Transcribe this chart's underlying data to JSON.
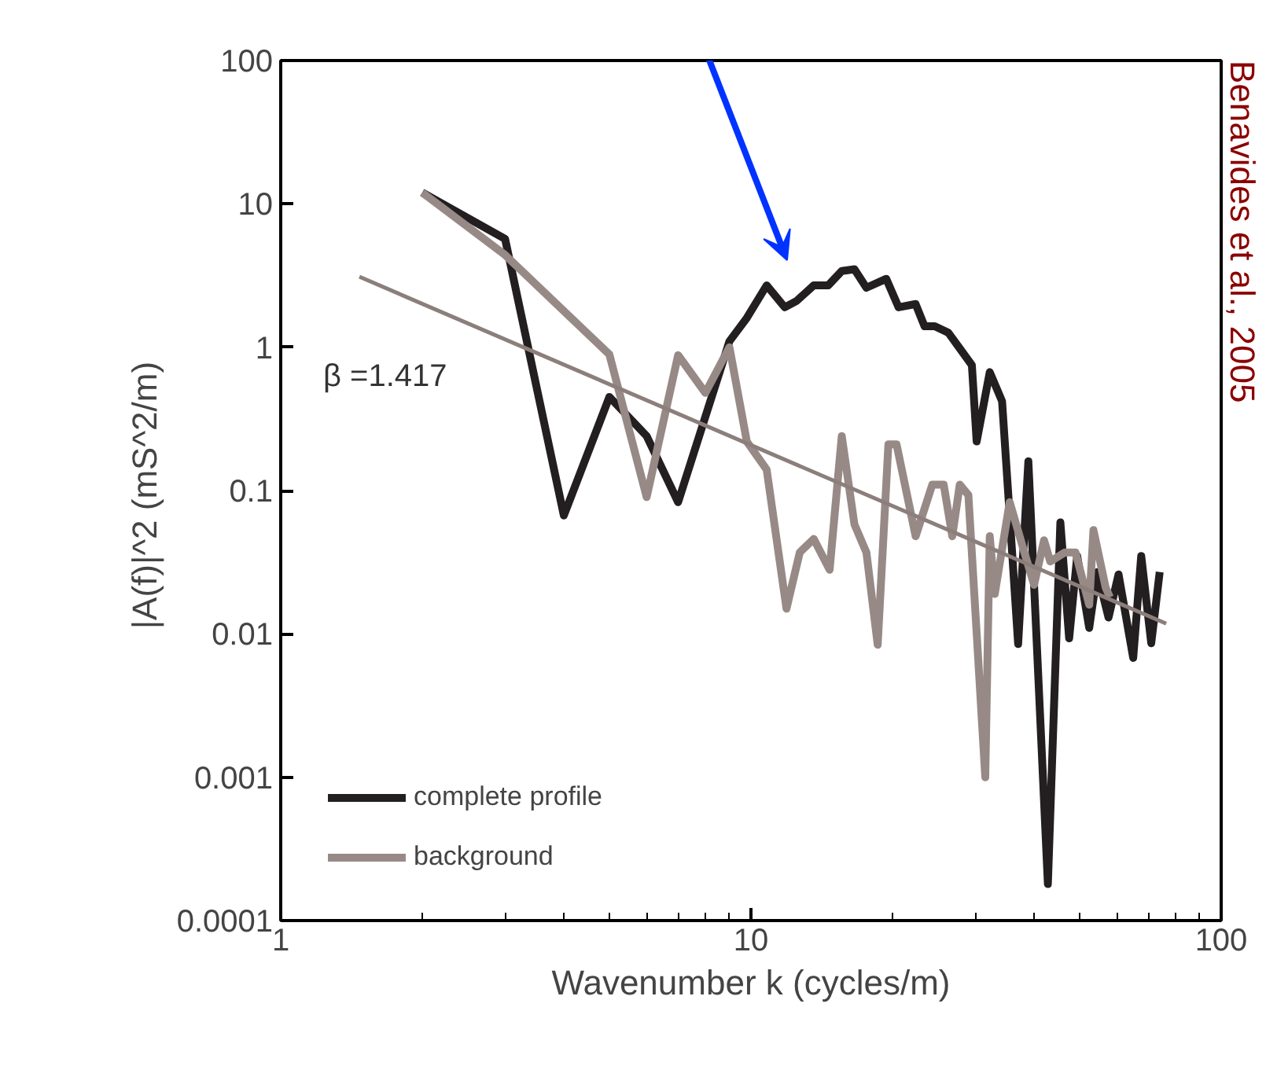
{
  "chart_data": {
    "type": "line",
    "xlabel": "Wavenumber k (cycles/m)",
    "ylabel": "|A(f)|^2  (mS^2/m)",
    "log": "xy",
    "xlim": [
      1,
      100
    ],
    "xticks": [
      1,
      10,
      100
    ],
    "ylim": [
      0.0001,
      100
    ],
    "yticks": [
      0.0001,
      0.001,
      0.01,
      0.1,
      1,
      10,
      100
    ],
    "grid": false,
    "legend": "bottom left",
    "marker": "none",
    "line_style": "solid",
    "series": [
      {
        "name": "complete profile",
        "color": "#231f20",
        "x": [
          2,
          3,
          4,
          5,
          6,
          7,
          9,
          9.8,
          10.8,
          11.8,
          12.5,
          13.6,
          14.6,
          15.6,
          16.6,
          17.6,
          19.4,
          20.6,
          22.4,
          23.4,
          24.6,
          26.3,
          28,
          29.5,
          30.2,
          32.2,
          34.2,
          35.5,
          37,
          38.9,
          42.8,
          45.5,
          47.5,
          49.4,
          52.4,
          54.5,
          57.6,
          60.5,
          65,
          67.6,
          71,
          74
        ],
        "values": [
          12,
          5.7,
          0.067,
          0.45,
          0.24,
          0.083,
          1.1,
          1.6,
          2.7,
          1.9,
          2.1,
          2.7,
          2.7,
          3.4,
          3.5,
          2.6,
          3.0,
          1.9,
          2.0,
          1.4,
          1.4,
          1.26,
          0.95,
          0.75,
          0.22,
          0.67,
          0.42,
          0.067,
          0.0085,
          0.16,
          0.00018,
          0.06,
          0.0093,
          0.035,
          0.011,
          0.027,
          0.013,
          0.026,
          0.0068,
          0.035,
          0.0086,
          0.027
        ]
      },
      {
        "name": "background",
        "color": "#978a86",
        "x": [
          2,
          3,
          5,
          6,
          7,
          8,
          9,
          9.8,
          10.8,
          11.9,
          12.7,
          13.6,
          14.7,
          15.6,
          16.6,
          17.6,
          18.6,
          19.6,
          20.4,
          22.4,
          24.3,
          25.7,
          26.8,
          27.8,
          29,
          31.5,
          32.2,
          33,
          35.5,
          37.8,
          40,
          42,
          43.3,
          46.5,
          49,
          52.4,
          53.5,
          56.8,
          58
        ],
        "values": [
          12,
          4.4,
          0.89,
          0.09,
          0.88,
          0.48,
          1.0,
          0.22,
          0.14,
          0.015,
          0.037,
          0.046,
          0.028,
          0.24,
          0.058,
          0.037,
          0.0084,
          0.21,
          0.21,
          0.048,
          0.11,
          0.11,
          0.048,
          0.11,
          0.093,
          0.001,
          0.048,
          0.019,
          0.083,
          0.041,
          0.022,
          0.045,
          0.032,
          0.037,
          0.037,
          0.016,
          0.053,
          0.021,
          0.018
        ]
      },
      {
        "type": "line",
        "color": "#8c7f7b",
        "x": [
          1.47,
          76.4
        ],
        "values": [
          3.1,
          0.0118
        ]
      }
    ],
    "annotations": [
      "β =1.417",
      "Benavides et al., 2005"
    ]
  }
}
